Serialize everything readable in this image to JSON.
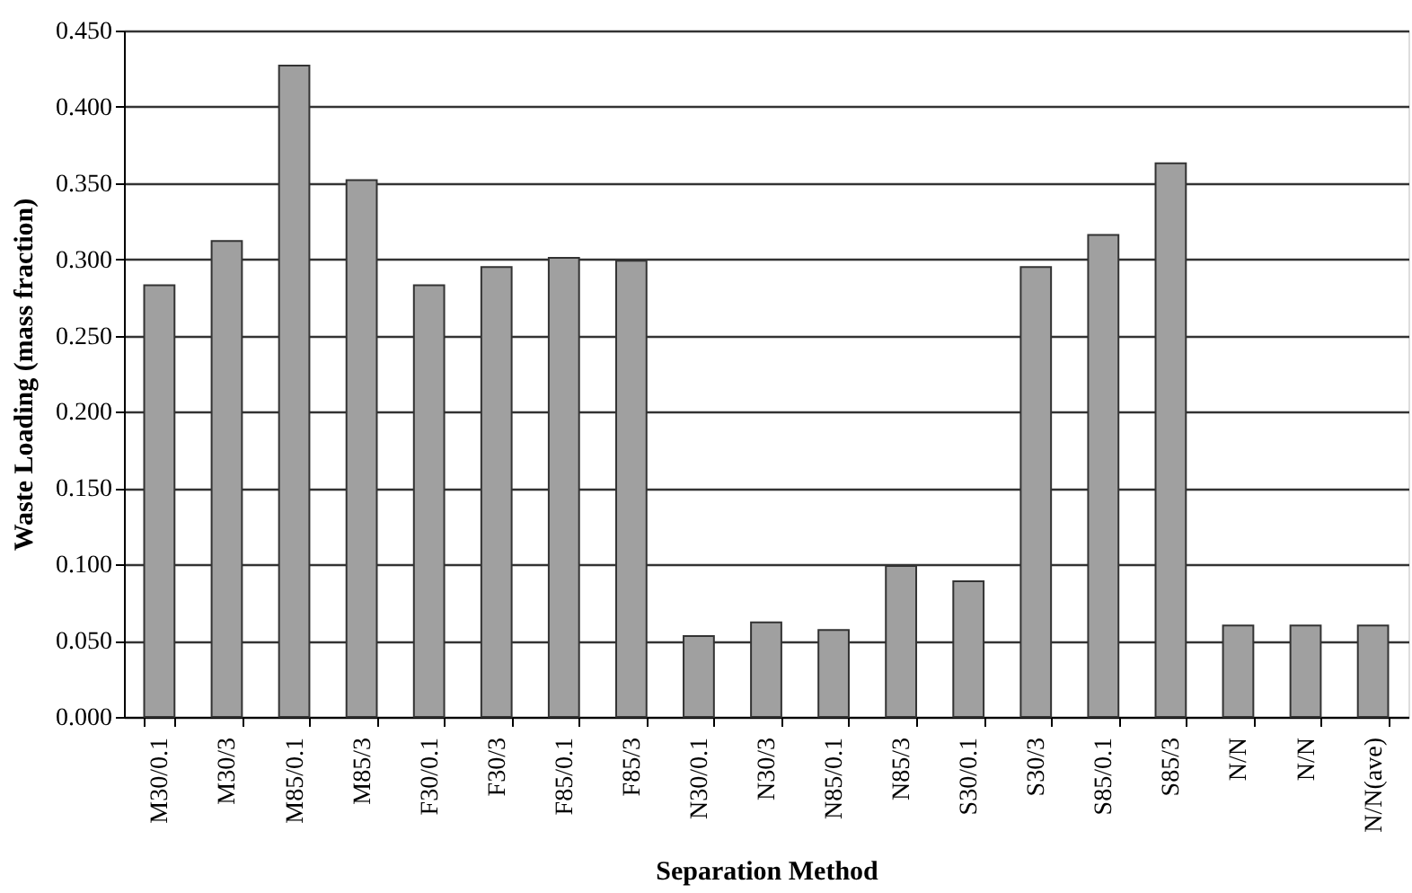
{
  "chart_data": {
    "type": "bar",
    "xlabel": "Separation Method",
    "ylabel": "Waste Loading (mass fraction)",
    "categories": [
      "M30/0.1",
      "M30/3",
      "M85/0.1",
      "M85/3",
      "F30/0.1",
      "F30/3",
      "F85/0.1",
      "F85/3",
      "N30/0.1",
      "N30/3",
      "N85/0.1",
      "N85/3",
      "S30/0.1",
      "S30/3",
      "S85/0.1",
      "S85/3",
      "N/N",
      "N/N",
      "N/N(ave)"
    ],
    "values": [
      0.283,
      0.312,
      0.427,
      0.352,
      0.283,
      0.295,
      0.301,
      0.299,
      0.053,
      0.062,
      0.057,
      0.099,
      0.089,
      0.295,
      0.316,
      0.363,
      0.06,
      0.06,
      0.06
    ],
    "color": "#a0a0a0",
    "ylim": [
      0,
      0.45
    ],
    "yticks": [
      {
        "value": 0,
        "label": "0.000"
      },
      {
        "value": 0.05,
        "label": "0.050"
      },
      {
        "value": 0.1,
        "label": "0.100"
      },
      {
        "value": 0.15,
        "label": "0.150"
      },
      {
        "value": 0.2,
        "label": "0.200"
      },
      {
        "value": 0.25,
        "label": "0.250"
      },
      {
        "value": 0.3,
        "label": "0.300"
      },
      {
        "value": 0.35,
        "label": "0.350"
      },
      {
        "value": 0.4,
        "label": "0.400"
      },
      {
        "value": 0.45,
        "label": "0.450"
      }
    ],
    "grid": "y"
  }
}
